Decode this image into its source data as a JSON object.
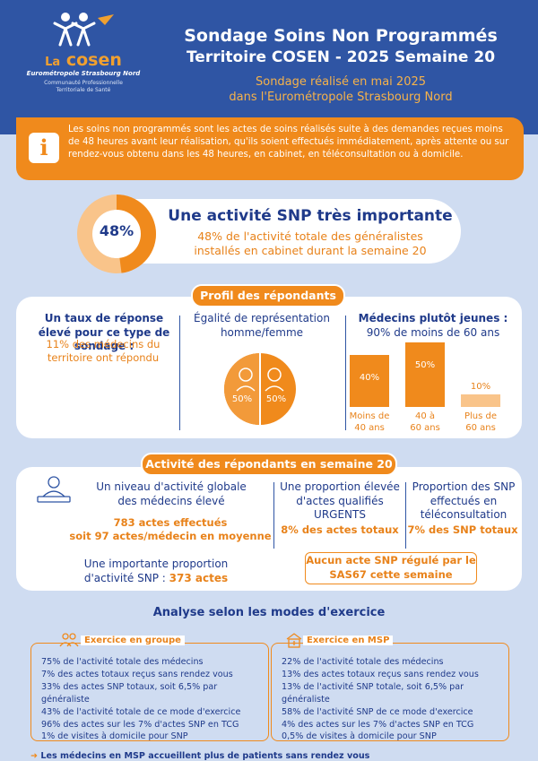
{
  "header": {
    "logo_la": "La",
    "logo_name": "cosen",
    "logo_subtitle": "Eurométropole Strasbourg Nord",
    "logo_tagline_1": "Communauté Professionnelle",
    "logo_tagline_2": "Territoriale de Santé",
    "title_1": "Sondage Soins Non Programmés",
    "title_2": "Territoire COSEN - 2025 Semaine 20",
    "subtitle_1": "Sondage réalisé en mai 2025",
    "subtitle_2": "dans l'Eurométropole Strasbourg Nord"
  },
  "info": {
    "icon": "info-icon",
    "glyph": "i",
    "text": "Les soins non programmés sont les actes de soins réalisés suite à des demandes reçues moins de 48 heures avant leur réalisation, qu'ils soient effectués immédiatement, après attente ou sur rendez-vous obtenu dans les 48 heures, en cabinet, en téléconsultation ou à domicile."
  },
  "kpi": {
    "value": "48%",
    "fraction": 0.48,
    "title": "Une activité SNP très importante",
    "desc_1": "48% de l'activité totale des généralistes",
    "desc_2": "installés en cabinet durant la semaine 20"
  },
  "profil": {
    "pill": "Profil des répondants",
    "col1_title": "Un taux de réponse élevé pour ce type de sondage :",
    "col1_highlight": "11% des médecins du territoire ont répondu",
    "col2_title": "Égalité de représentation homme/femme",
    "gender": {
      "female": "50%",
      "male": "50%"
    },
    "col3_title_1": "Médecins plutôt jeunes :",
    "col3_title_2": "90% de moins de 60 ans"
  },
  "chart_data": {
    "type": "bar",
    "categories": [
      "Moins de 40 ans",
      "40 à 60 ans",
      "Plus de 60 ans"
    ],
    "category_lines": [
      [
        "Moins de",
        "40 ans"
      ],
      [
        "40 à",
        "60 ans"
      ],
      [
        "Plus de",
        "60 ans"
      ]
    ],
    "values": [
      40,
      50,
      10
    ],
    "value_labels": [
      "40%",
      "50%",
      "10%"
    ],
    "ylim": [
      0,
      50
    ]
  },
  "activite": {
    "pill": "Activité des répondants en semaine 20",
    "level_title_1": "Un niveau d'activité globale",
    "level_title_2": "des médecins élevé",
    "level_value_1": "783 actes effectués",
    "level_value_2": "soit 97 actes/médecin en moyenne",
    "snp_title_1": "Une importante proportion",
    "snp_title_2": "d'activité SNP :",
    "snp_value": "373 actes",
    "urgent_title": "Une proportion élevée d'actes qualifiés URGENTS",
    "urgent_value": "8% des actes totaux",
    "tele_title": "Proportion des SNP effectués en téléconsultation",
    "tele_value": "7% des SNP totaux",
    "sas_1": "Aucun acte SNP régulé par le",
    "sas_2": "SAS67 cette semaine"
  },
  "modes": {
    "title": "Analyse selon les modes d'exercice",
    "groupe": {
      "label": "Exercice en groupe",
      "items": [
        "75% de l'activité totale des médecins",
        "7% des actes totaux reçus sans rendez vous",
        "33% des actes SNP totaux, soit 6,5% par généraliste",
        "43% de l'activité totale de ce mode d'exercice",
        "96% des actes sur les 7% d'actes SNP en TCG",
        "1% de visites à domicile pour SNP"
      ]
    },
    "msp": {
      "label": "Exercice en MSP",
      "items": [
        "22% de l'activité totale des médecins",
        "13% des actes totaux reçus sans rendez vous",
        "13% de l'activité SNP totale, soit 6,5% par généraliste",
        "58% de l'activité SNP de ce mode d'exercice",
        "4% des actes sur les 7% d'actes SNP en TCG",
        "0,5% de visites à domicile pour SNP"
      ]
    },
    "footer": "Les médecins en MSP accueillent plus de patients sans rendez vous"
  },
  "colors": {
    "blue": "#2f55a4",
    "orange": "#f08a1c",
    "light_orange": "#f9c48a",
    "background": "#cfdcf1"
  }
}
